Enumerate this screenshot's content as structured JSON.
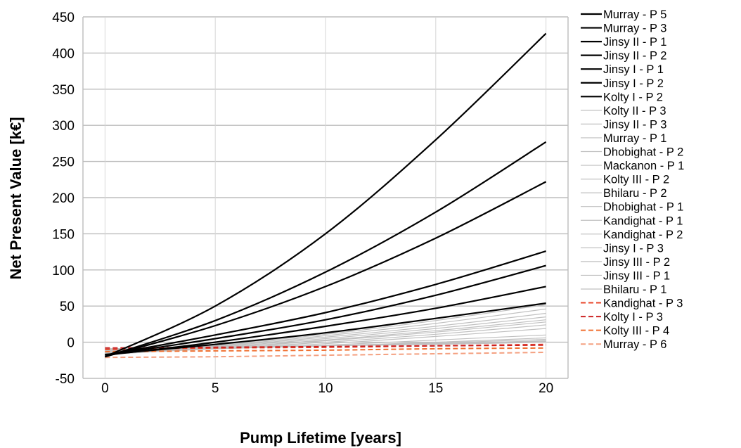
{
  "chart_data": {
    "type": "line",
    "title": "",
    "xlabel": "Pump Lifetime [years]",
    "ylabel": "Net Present Value [k€]",
    "xlim": [
      -1,
      21
    ],
    "ylim": [
      -50,
      450
    ],
    "xticks": [
      0,
      5,
      10,
      15,
      20
    ],
    "yticks": [
      -50,
      0,
      50,
      100,
      150,
      200,
      250,
      300,
      350,
      400,
      450
    ],
    "grid": true,
    "legend_position": "right",
    "series": [
      {
        "name": "Murray - P 5",
        "style": "solid",
        "color": "#000000",
        "x": [
          0,
          5,
          10,
          15,
          20
        ],
        "y": [
          -20,
          50,
          150,
          280,
          427
        ]
      },
      {
        "name": "Murray - P 3",
        "style": "solid",
        "color": "#000000",
        "x": [
          0,
          5,
          10,
          15,
          20
        ],
        "y": [
          -20,
          30,
          97,
          180,
          277
        ]
      },
      {
        "name": "Jinsy II - P 1",
        "style": "solid",
        "color": "#000000",
        "x": [
          0,
          5,
          10,
          15,
          20
        ],
        "y": [
          -20,
          23,
          77,
          144,
          222
        ]
      },
      {
        "name": "Jinsy II - P 2",
        "style": "solid",
        "color": "#000000",
        "x": [
          0,
          5,
          10,
          15,
          20
        ],
        "y": [
          -18,
          10,
          41,
          80,
          126
        ]
      },
      {
        "name": "Jinsy I - P 1",
        "style": "solid",
        "color": "#000000",
        "x": [
          0,
          5,
          10,
          15,
          20
        ],
        "y": [
          -18,
          5,
          31,
          65,
          106
        ]
      },
      {
        "name": "Jinsy I - P 2",
        "style": "solid",
        "color": "#000000",
        "x": [
          0,
          5,
          10,
          15,
          20
        ],
        "y": [
          -18,
          0,
          22,
          47,
          77
        ]
      },
      {
        "name": "Kolty I - P 2",
        "style": "solid",
        "color": "#000000",
        "x": [
          0,
          5,
          10,
          15,
          20
        ],
        "y": [
          -17,
          -3,
          13,
          33,
          54
        ]
      },
      {
        "name": "Kolty II - P 3",
        "style": "solid",
        "color": "#c0c0c0",
        "x": [
          0,
          5,
          10,
          15,
          20
        ],
        "y": [
          -17,
          -4,
          11,
          30,
          52
        ]
      },
      {
        "name": "Jinsy II - P 3",
        "style": "solid",
        "color": "#c0c0c0",
        "x": [
          0,
          5,
          10,
          15,
          20
        ],
        "y": [
          -17,
          -5,
          9,
          26,
          46
        ]
      },
      {
        "name": "Murray - P 1",
        "style": "solid",
        "color": "#c0c0c0",
        "x": [
          0,
          5,
          10,
          15,
          20
        ],
        "y": [
          -17,
          -6,
          7,
          22,
          40
        ]
      },
      {
        "name": "Dhobighat - P 2",
        "style": "solid",
        "color": "#c0c0c0",
        "x": [
          0,
          5,
          10,
          15,
          20
        ],
        "y": [
          -17,
          -7,
          5,
          19,
          35
        ]
      },
      {
        "name": "Mackanon - P 1",
        "style": "solid",
        "color": "#c0c0c0",
        "x": [
          0,
          5,
          10,
          15,
          20
        ],
        "y": [
          -17,
          -8,
          3,
          16,
          31
        ]
      },
      {
        "name": "Kolty III - P 2",
        "style": "solid",
        "color": "#c0c0c0",
        "x": [
          0,
          5,
          10,
          15,
          20
        ],
        "y": [
          -16,
          -8,
          2,
          14,
          28
        ]
      },
      {
        "name": "Bhilaru - P 2",
        "style": "solid",
        "color": "#c0c0c0",
        "x": [
          0,
          5,
          10,
          15,
          20
        ],
        "y": [
          -16,
          -9,
          0,
          11,
          24
        ]
      },
      {
        "name": "Dhobighat - P 1",
        "style": "solid",
        "color": "#c0c0c0",
        "x": [
          0,
          5,
          10,
          15,
          20
        ],
        "y": [
          -15,
          -9,
          -2,
          8,
          19
        ]
      },
      {
        "name": "Kandighat - P 1",
        "style": "solid",
        "color": "#c0c0c0",
        "x": [
          0,
          5,
          10,
          15,
          20
        ],
        "y": [
          -14,
          -9,
          -4,
          3,
          10
        ]
      },
      {
        "name": "Kandighat - P 2",
        "style": "solid",
        "color": "#c0c0c0",
        "x": [
          0,
          5,
          10,
          15,
          20
        ],
        "y": [
          -13,
          -9,
          -5,
          0,
          6
        ]
      },
      {
        "name": "Jinsy I - P 3",
        "style": "solid",
        "color": "#c0c0c0",
        "x": [
          0,
          5,
          10,
          15,
          20
        ],
        "y": [
          -12,
          -8,
          -5,
          -1,
          4
        ]
      },
      {
        "name": "Jinsy III - P 2",
        "style": "solid",
        "color": "#c0c0c0",
        "x": [
          0,
          5,
          10,
          15,
          20
        ],
        "y": [
          -11,
          -8,
          -5,
          -2,
          2
        ]
      },
      {
        "name": "Jinsy III - P 1",
        "style": "solid",
        "color": "#c0c0c0",
        "x": [
          0,
          5,
          10,
          15,
          20
        ],
        "y": [
          -10,
          -8,
          -5,
          -2,
          1
        ]
      },
      {
        "name": "Bhilaru - P 1",
        "style": "solid",
        "color": "#c0c0c0",
        "x": [
          0,
          5,
          10,
          15,
          20
        ],
        "y": [
          -9,
          -7,
          -5,
          -3,
          0
        ]
      },
      {
        "name": "Kandighat - P 3",
        "style": "dashed",
        "color": "#e8452a",
        "x": [
          0,
          5,
          10,
          15,
          20
        ],
        "y": [
          -10,
          -8,
          -7,
          -5,
          -3
        ]
      },
      {
        "name": "Kolty I - P 3",
        "style": "dashed",
        "color": "#cc2222",
        "x": [
          0,
          5,
          10,
          15,
          20
        ],
        "y": [
          -8,
          -7,
          -6,
          -5,
          -4
        ]
      },
      {
        "name": "Kolty III - P 4",
        "style": "dashed",
        "color": "#f07030",
        "x": [
          0,
          5,
          10,
          15,
          20
        ],
        "y": [
          -13,
          -12,
          -11,
          -9,
          -8
        ]
      },
      {
        "name": "Murray - P 6",
        "style": "dashed",
        "color": "#f4a080",
        "x": [
          0,
          5,
          10,
          15,
          20
        ],
        "y": [
          -21,
          -20,
          -18,
          -16,
          -14
        ]
      }
    ]
  }
}
